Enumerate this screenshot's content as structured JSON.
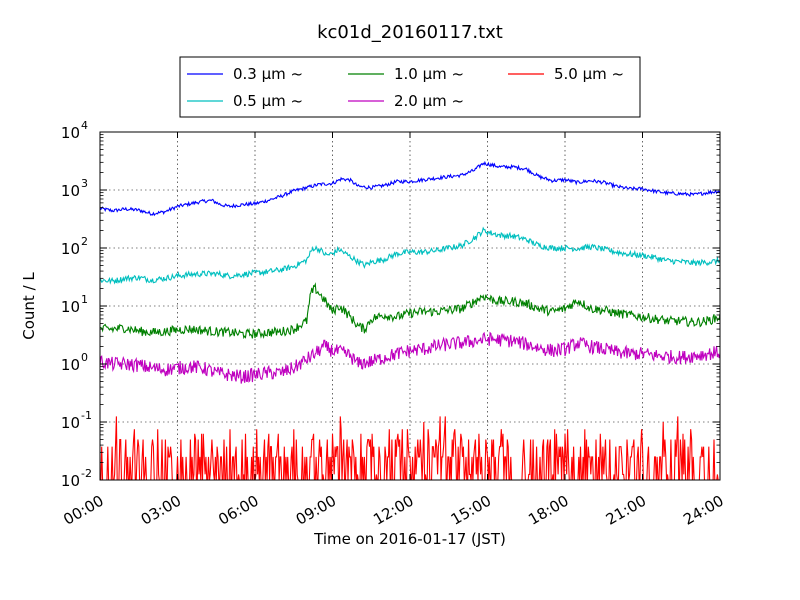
{
  "chart_data": {
    "type": "line",
    "title": "kc01d_20160117.txt",
    "xlabel": "Time on 2016-01-17 (JST)",
    "ylabel": "Count / L",
    "yscale": "log",
    "ylim": [
      0.01,
      10000
    ],
    "xlim": [
      "00:00",
      "24:00"
    ],
    "x_ticks": [
      "00:00",
      "03:00",
      "06:00",
      "09:00",
      "12:00",
      "15:00",
      "18:00",
      "21:00",
      "24:00"
    ],
    "y_ticks": [
      {
        "base": "10",
        "exp": "-2"
      },
      {
        "base": "10",
        "exp": "-1"
      },
      {
        "base": "10",
        "exp": "0"
      },
      {
        "base": "10",
        "exp": "1"
      },
      {
        "base": "10",
        "exp": "2"
      },
      {
        "base": "10",
        "exp": "3"
      },
      {
        "base": "10",
        "exp": "4"
      }
    ],
    "grid": true,
    "legend_position": "top-center",
    "series": [
      {
        "name": "0.3 μm ~",
        "color": "#0000ff",
        "noise": 0.03,
        "points": [
          [
            "00:00",
            480
          ],
          [
            "00:30",
            440
          ],
          [
            "01:00",
            470
          ],
          [
            "01:30",
            450
          ],
          [
            "02:00",
            390
          ],
          [
            "02:30",
            420
          ],
          [
            "03:00",
            520
          ],
          [
            "03:30",
            580
          ],
          [
            "04:00",
            640
          ],
          [
            "04:20",
            660
          ],
          [
            "04:40",
            560
          ],
          [
            "05:00",
            520
          ],
          [
            "05:30",
            560
          ],
          [
            "06:00",
            580
          ],
          [
            "06:30",
            660
          ],
          [
            "07:00",
            780
          ],
          [
            "07:30",
            960
          ],
          [
            "08:00",
            1100
          ],
          [
            "08:30",
            1250
          ],
          [
            "09:00",
            1300
          ],
          [
            "09:20",
            1550
          ],
          [
            "09:40",
            1500
          ],
          [
            "10:00",
            1150
          ],
          [
            "10:30",
            1100
          ],
          [
            "11:00",
            1200
          ],
          [
            "11:30",
            1400
          ],
          [
            "12:00",
            1400
          ],
          [
            "12:30",
            1500
          ],
          [
            "13:00",
            1600
          ],
          [
            "13:30",
            1700
          ],
          [
            "14:00",
            1800
          ],
          [
            "14:30",
            2200
          ],
          [
            "14:50",
            2900
          ],
          [
            "15:10",
            2700
          ],
          [
            "15:30",
            2500
          ],
          [
            "16:00",
            2500
          ],
          [
            "16:30",
            2300
          ],
          [
            "17:00",
            1700
          ],
          [
            "17:30",
            1450
          ],
          [
            "18:00",
            1500
          ],
          [
            "18:30",
            1350
          ],
          [
            "19:00",
            1450
          ],
          [
            "19:30",
            1350
          ],
          [
            "20:00",
            1150
          ],
          [
            "20:30",
            1050
          ],
          [
            "21:00",
            1050
          ],
          [
            "21:30",
            950
          ],
          [
            "22:00",
            880
          ],
          [
            "22:30",
            860
          ],
          [
            "23:00",
            830
          ],
          [
            "23:30",
            900
          ],
          [
            "24:00",
            960
          ]
        ]
      },
      {
        "name": "0.5 μm ~",
        "color": "#00bfbf",
        "noise": 0.05,
        "points": [
          [
            "00:00",
            28
          ],
          [
            "00:30",
            27
          ],
          [
            "01:00",
            30
          ],
          [
            "01:30",
            31
          ],
          [
            "02:00",
            28
          ],
          [
            "02:30",
            30
          ],
          [
            "03:00",
            33
          ],
          [
            "03:30",
            35
          ],
          [
            "04:00",
            36
          ],
          [
            "04:30",
            36
          ],
          [
            "05:00",
            33
          ],
          [
            "05:30",
            35
          ],
          [
            "06:00",
            37
          ],
          [
            "06:30",
            39
          ],
          [
            "07:00",
            42
          ],
          [
            "07:30",
            48
          ],
          [
            "08:00",
            62
          ],
          [
            "08:15",
            100
          ],
          [
            "08:30",
            95
          ],
          [
            "08:45",
            75
          ],
          [
            "09:00",
            80
          ],
          [
            "09:15",
            95
          ],
          [
            "09:30",
            80
          ],
          [
            "10:00",
            58
          ],
          [
            "10:15",
            50
          ],
          [
            "10:30",
            57
          ],
          [
            "11:00",
            64
          ],
          [
            "11:30",
            80
          ],
          [
            "12:00",
            85
          ],
          [
            "12:30",
            85
          ],
          [
            "13:00",
            90
          ],
          [
            "13:30",
            100
          ],
          [
            "14:00",
            110
          ],
          [
            "14:30",
            150
          ],
          [
            "14:50",
            200
          ],
          [
            "15:10",
            180
          ],
          [
            "15:30",
            165
          ],
          [
            "16:00",
            160
          ],
          [
            "16:30",
            140
          ],
          [
            "17:00",
            110
          ],
          [
            "17:30",
            100
          ],
          [
            "18:00",
            100
          ],
          [
            "18:30",
            98
          ],
          [
            "19:00",
            105
          ],
          [
            "19:30",
            95
          ],
          [
            "20:00",
            85
          ],
          [
            "20:30",
            78
          ],
          [
            "21:00",
            75
          ],
          [
            "21:30",
            68
          ],
          [
            "22:00",
            60
          ],
          [
            "22:30",
            58
          ],
          [
            "23:00",
            55
          ],
          [
            "23:30",
            57
          ],
          [
            "24:00",
            60
          ]
        ]
      },
      {
        "name": "1.0 μm ~",
        "color": "#008000",
        "noise": 0.08,
        "points": [
          [
            "00:00",
            4.0
          ],
          [
            "00:30",
            4.0
          ],
          [
            "01:00",
            4.2
          ],
          [
            "01:30",
            3.7
          ],
          [
            "02:00",
            3.5
          ],
          [
            "02:30",
            3.6
          ],
          [
            "03:00",
            3.9
          ],
          [
            "03:30",
            4.0
          ],
          [
            "04:00",
            3.8
          ],
          [
            "04:30",
            3.6
          ],
          [
            "05:00",
            3.5
          ],
          [
            "05:30",
            3.3
          ],
          [
            "06:00",
            3.3
          ],
          [
            "06:30",
            3.5
          ],
          [
            "07:00",
            3.6
          ],
          [
            "07:30",
            4.0
          ],
          [
            "08:00",
            5.5
          ],
          [
            "08:10",
            17
          ],
          [
            "08:20",
            20
          ],
          [
            "08:40",
            13
          ],
          [
            "09:00",
            8
          ],
          [
            "09:15",
            10
          ],
          [
            "09:30",
            8
          ],
          [
            "10:00",
            4.5
          ],
          [
            "10:15",
            4.0
          ],
          [
            "10:30",
            6
          ],
          [
            "11:00",
            7
          ],
          [
            "11:30",
            6.5
          ],
          [
            "12:00",
            7.5
          ],
          [
            "12:30",
            8
          ],
          [
            "13:00",
            8
          ],
          [
            "13:30",
            8.5
          ],
          [
            "14:00",
            9
          ],
          [
            "14:30",
            12
          ],
          [
            "14:50",
            15
          ],
          [
            "15:10",
            13
          ],
          [
            "15:30",
            12
          ],
          [
            "16:00",
            12
          ],
          [
            "16:30",
            11
          ],
          [
            "17:00",
            9
          ],
          [
            "17:30",
            8
          ],
          [
            "18:00",
            9
          ],
          [
            "18:30",
            12.5
          ],
          [
            "19:00",
            9
          ],
          [
            "19:30",
            8.5
          ],
          [
            "20:00",
            7.5
          ],
          [
            "20:30",
            7
          ],
          [
            "21:00",
            6.5
          ],
          [
            "21:30",
            6
          ],
          [
            "22:00",
            5.5
          ],
          [
            "22:30",
            5.5
          ],
          [
            "23:00",
            5.2
          ],
          [
            "23:30",
            5.5
          ],
          [
            "24:00",
            6.5
          ]
        ]
      },
      {
        "name": "2.0 μm ~",
        "color": "#bf00bf",
        "noise": 0.12,
        "points": [
          [
            "00:00",
            1.1
          ],
          [
            "00:30",
            1.0
          ],
          [
            "01:00",
            1.0
          ],
          [
            "01:30",
            0.95
          ],
          [
            "02:00",
            0.85
          ],
          [
            "02:30",
            0.8
          ],
          [
            "03:00",
            0.85
          ],
          [
            "03:30",
            0.9
          ],
          [
            "04:00",
            0.85
          ],
          [
            "04:30",
            0.7
          ],
          [
            "05:00",
            0.65
          ],
          [
            "05:30",
            0.6
          ],
          [
            "06:00",
            0.65
          ],
          [
            "06:30",
            0.7
          ],
          [
            "07:00",
            0.7
          ],
          [
            "07:30",
            0.85
          ],
          [
            "08:00",
            1.2
          ],
          [
            "08:20",
            1.5
          ],
          [
            "08:40",
            2.0
          ],
          [
            "09:00",
            1.7
          ],
          [
            "09:20",
            1.6
          ],
          [
            "09:40",
            1.4
          ],
          [
            "10:00",
            1.0
          ],
          [
            "10:30",
            1.1
          ],
          [
            "11:00",
            1.3
          ],
          [
            "11:30",
            1.5
          ],
          [
            "12:00",
            1.7
          ],
          [
            "12:30",
            1.8
          ],
          [
            "13:00",
            2.0
          ],
          [
            "13:30",
            2.2
          ],
          [
            "14:00",
            2.3
          ],
          [
            "14:30",
            2.5
          ],
          [
            "15:00",
            2.7
          ],
          [
            "15:30",
            2.6
          ],
          [
            "16:00",
            2.5
          ],
          [
            "16:30",
            2.2
          ],
          [
            "17:00",
            1.9
          ],
          [
            "17:30",
            1.7
          ],
          [
            "18:00",
            1.8
          ],
          [
            "18:30",
            2.3
          ],
          [
            "19:00",
            2.0
          ],
          [
            "19:30",
            1.8
          ],
          [
            "20:00",
            1.6
          ],
          [
            "20:30",
            1.5
          ],
          [
            "21:00",
            1.5
          ],
          [
            "21:30",
            1.4
          ],
          [
            "22:00",
            1.35
          ],
          [
            "22:30",
            1.3
          ],
          [
            "23:00",
            1.4
          ],
          [
            "23:30",
            1.5
          ],
          [
            "24:00",
            1.6
          ]
        ]
      },
      {
        "name": "5.0 μm ~",
        "color": "#ff0000",
        "noise": 0,
        "pattern": "sparse",
        "levels": [
          0.0125,
          0.025,
          0.0375,
          0.05,
          0.0625,
          0.075,
          0.1,
          0.125
        ]
      }
    ]
  }
}
